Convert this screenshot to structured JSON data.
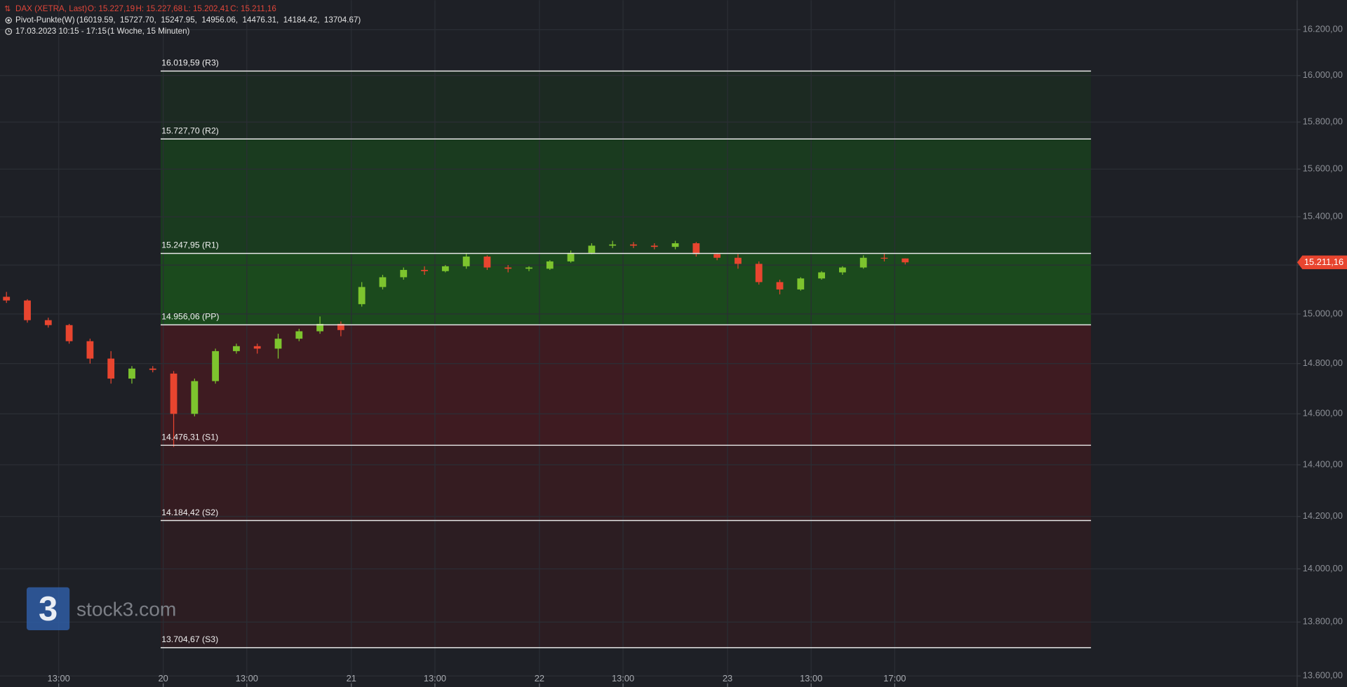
{
  "chart_data": {
    "type": "candlestick",
    "title": "DAX (XETRA, Last)",
    "ohlc_labels": [
      "O: 15.227,19",
      "H: 15.227,68",
      "L: 15.202,41",
      "C: 15.211,16"
    ],
    "indicator": "Pivot-Punkte(W)",
    "indicator_values": "(16019.59,  15727.70,  15247.95,  14956.06,  14476.31,  14184.42,  13704.67)",
    "period": "17.03.2023 10:15 - 17:15",
    "period_detail": "(1 Woche, 15 Minuten)",
    "watermark": "stock3.com",
    "logo": "3",
    "log_scale": true,
    "grid": true,
    "up_color": "#7dc42e",
    "down_color": "#e8452f",
    "categories": [
      null,
      null,
      null,
      "13:00",
      null,
      null,
      null,
      null,
      "20",
      null,
      null,
      null,
      "13:00",
      null,
      null,
      null,
      null,
      "21",
      null,
      null,
      null,
      "13:00",
      null,
      null,
      null,
      null,
      "22",
      null,
      null,
      null,
      "13:00",
      null,
      null,
      null,
      null,
      "23",
      null,
      null,
      null,
      "13:00",
      null,
      null,
      null,
      "17:00"
    ],
    "open": [
      15070,
      15055,
      14975,
      14955,
      14890,
      14820,
      14740,
      14780,
      14760,
      14600,
      14730,
      14850,
      14870,
      14860,
      14900,
      14930,
      14960,
      15040,
      15110,
      15150,
      15180,
      15175,
      15195,
      15235,
      15190,
      15185,
      15185,
      15215,
      15250,
      15280,
      15285,
      15280,
      15275,
      15290,
      15245,
      15230,
      15205,
      15130,
      15100,
      15145,
      15170,
      15190,
      15230,
      15227.19
    ],
    "high": [
      15090,
      15060,
      14985,
      14960,
      14900,
      14850,
      14790,
      14790,
      14770,
      14740,
      14860,
      14880,
      14880,
      14920,
      14940,
      14990,
      14970,
      15130,
      15160,
      15190,
      15195,
      15200,
      15250,
      15240,
      15200,
      15195,
      15220,
      15260,
      15290,
      15300,
      15295,
      15290,
      15300,
      15295,
      15250,
      15245,
      15215,
      15140,
      15150,
      15175,
      15195,
      15240,
      15250,
      15227.68
    ],
    "low": [
      15045,
      14965,
      14945,
      14880,
      14800,
      14720,
      14720,
      14765,
      14470,
      14590,
      14720,
      14840,
      14840,
      14820,
      14890,
      14920,
      14910,
      15030,
      15100,
      15140,
      15160,
      15170,
      15185,
      15180,
      15170,
      15175,
      15180,
      15210,
      15245,
      15270,
      15270,
      15265,
      15265,
      15235,
      15220,
      15185,
      15120,
      15080,
      15095,
      15140,
      15160,
      15185,
      15215,
      15202.41
    ],
    "close": [
      15055,
      14975,
      14955,
      14890,
      14820,
      14740,
      14780,
      14775,
      14600,
      14730,
      14850,
      14870,
      14860,
      14900,
      14930,
      14960,
      14935,
      15110,
      15150,
      15180,
      15175,
      15195,
      15235,
      15190,
      15185,
      15190,
      15215,
      15250,
      15280,
      15285,
      15280,
      15275,
      15290,
      15245,
      15230,
      15205,
      15130,
      15100,
      15145,
      15170,
      15190,
      15230,
      15227,
      15211.16
    ],
    "pivots": [
      {
        "value": 16019.59,
        "label": "16.019,59 (R3)"
      },
      {
        "value": 15727.7,
        "label": "15.727,70 (R2)"
      },
      {
        "value": 15247.95,
        "label": "15.247,95 (R1)"
      },
      {
        "value": 14956.06,
        "label": "14.956,06 (PP)"
      },
      {
        "value": 14476.31,
        "label": "14.476,31 (S1)"
      },
      {
        "value": 14184.42,
        "label": "14.184,42 (S2)"
      },
      {
        "value": 13704.67,
        "label": "13.704,67 (S3)"
      }
    ],
    "zone_colors": [
      "#1c2a22",
      "#1a3b1f",
      "#1b4a1d",
      "#3e1b21",
      "#351c21",
      "#2c1d22"
    ],
    "last_price": {
      "value": 15211.16,
      "label": "15.211,16"
    },
    "ylim": [
      13560,
      16330
    ],
    "yticks": [
      {
        "value": 16200,
        "label": "16.200,00"
      },
      {
        "value": 16000,
        "label": "16.000,00"
      },
      {
        "value": 15800,
        "label": "15.800,00"
      },
      {
        "value": 15600,
        "label": "15.600,00"
      },
      {
        "value": 15400,
        "label": "15.400,00"
      },
      {
        "value": 15200,
        "label": "15.200,00"
      },
      {
        "value": 15000,
        "label": "15.000,00"
      },
      {
        "value": 14800,
        "label": "14.800,00"
      },
      {
        "value": 14600,
        "label": "14.600,00"
      },
      {
        "value": 14400,
        "label": "14.400,00"
      },
      {
        "value": 14200,
        "label": "14.200,00"
      },
      {
        "value": 14000,
        "label": "14.000,00"
      },
      {
        "value": 13800,
        "label": "13.800,00"
      },
      {
        "value": 13600,
        "label": "13.600,00"
      }
    ]
  }
}
